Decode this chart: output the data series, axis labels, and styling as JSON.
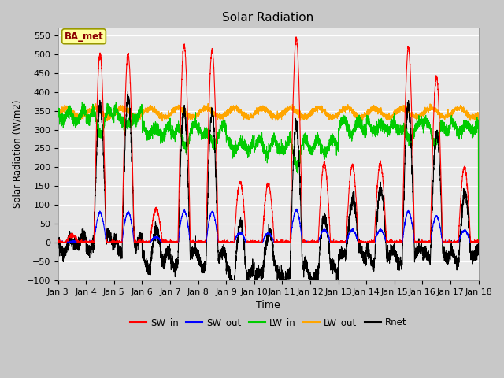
{
  "title": "Solar Radiation",
  "xlabel": "Time",
  "ylabel": "Solar Radiation (W/m2)",
  "ylim": [
    -100,
    570
  ],
  "yticks": [
    -100,
    -50,
    0,
    50,
    100,
    150,
    200,
    250,
    300,
    350,
    400,
    450,
    500,
    550
  ],
  "n_days": 15,
  "annotation_text": "BA_met",
  "legend_entries": [
    "SW_in",
    "SW_out",
    "LW_in",
    "LW_out",
    "Rnet"
  ],
  "colors": {
    "SW_in": "#ff0000",
    "SW_out": "#0000ff",
    "LW_in": "#00cc00",
    "LW_out": "#ffa500",
    "Rnet": "#000000"
  },
  "linewidth": 0.8,
  "day_labels": [
    "Jan 3",
    "Jan 4",
    "Jan 5",
    "Jan 6",
    "Jan 7",
    "Jan 8",
    "Jan 9",
    "Jan 10",
    "Jan 11",
    "Jan 12",
    "Jan 13",
    "Jan 14",
    "Jan 15",
    "Jan 16",
    "Jan 17",
    "Jan 18"
  ],
  "day_peaks_SW": [
    20,
    500,
    500,
    90,
    525,
    510,
    160,
    155,
    540,
    210,
    205,
    210,
    515,
    440,
    200
  ],
  "LW_in_bases": [
    340,
    340,
    340,
    300,
    300,
    300,
    260,
    260,
    260,
    260,
    310,
    310,
    310,
    310,
    310
  ],
  "LW_out_base": 345,
  "fig_facecolor": "#c8c8c8",
  "ax_facecolor": "#e8e8e8"
}
